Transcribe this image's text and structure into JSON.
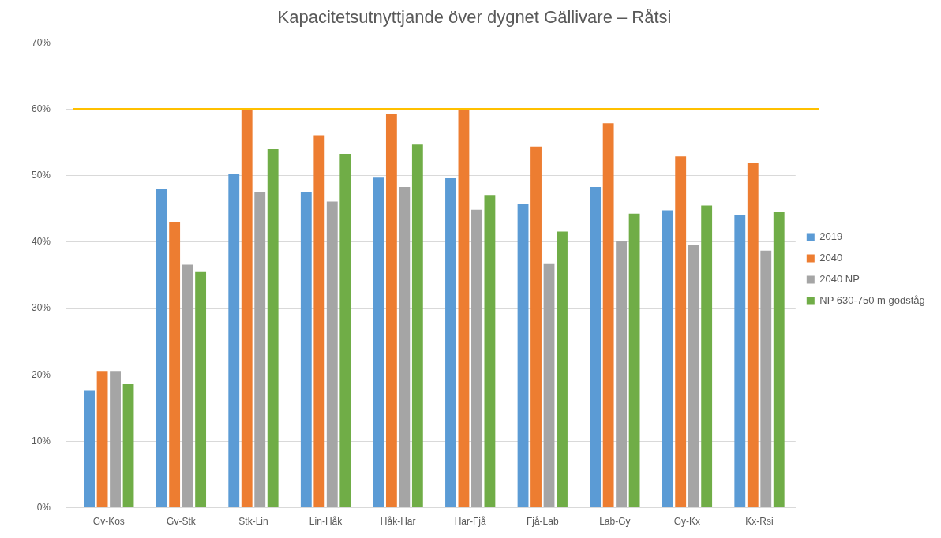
{
  "chart_data": {
    "type": "bar",
    "title": "Kapacitetsutnyttjande över dygnet Gällivare – Råtsi",
    "categories": [
      "Gv-Kos",
      "Gv-Stk",
      "Stk-Lin",
      "Lin-Håk",
      "Håk-Har",
      "Har-Fjå",
      "Fjå-Lab",
      "Lab-Gy",
      "Gy-Kx",
      "Kx-Rsi"
    ],
    "series": [
      {
        "name": "2019",
        "color": "#5b9bd5",
        "values": [
          17.6,
          48.0,
          50.3,
          47.5,
          49.7,
          49.6,
          45.8,
          48.3,
          44.8,
          44.1
        ]
      },
      {
        "name": "2040",
        "color": "#ed7d31",
        "values": [
          20.6,
          43.0,
          59.9,
          56.1,
          59.3,
          59.9,
          54.4,
          57.9,
          52.9,
          52.0
        ]
      },
      {
        "name": "2040 NP",
        "color": "#a5a5a5",
        "values": [
          20.6,
          36.6,
          47.5,
          46.1,
          48.3,
          44.9,
          36.7,
          40.1,
          39.6,
          38.7
        ]
      },
      {
        "name": "NP 630-750 m godståg",
        "color": "#70ad47",
        "values": [
          18.6,
          35.5,
          54.0,
          53.3,
          54.7,
          47.1,
          41.6,
          44.3,
          45.5,
          44.5
        ]
      }
    ],
    "ylim": [
      0,
      70
    ],
    "yticks": [
      {
        "value": 0,
        "label": "0%"
      },
      {
        "value": 10,
        "label": "10%"
      },
      {
        "value": 20,
        "label": "20%"
      },
      {
        "value": 30,
        "label": "30%"
      },
      {
        "value": 40,
        "label": "40%"
      },
      {
        "value": 50,
        "label": "50%"
      },
      {
        "value": 60,
        "label": "60%"
      },
      {
        "value": 70,
        "label": "70%"
      }
    ],
    "ref_lines": [
      {
        "axis": "y",
        "value": 60,
        "color": "#ffc000"
      }
    ],
    "grid": "y",
    "legend": "right"
  }
}
